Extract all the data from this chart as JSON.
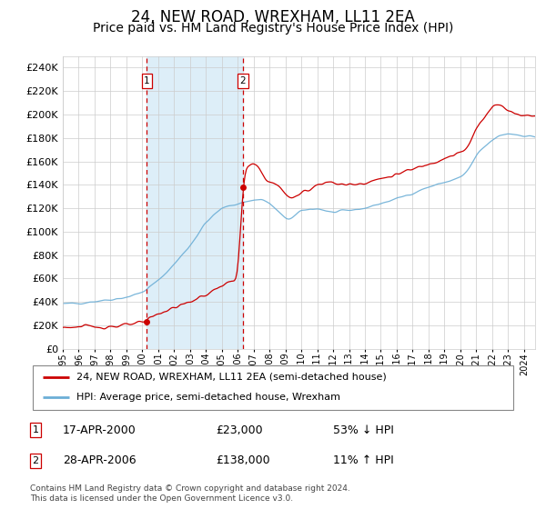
{
  "title": "24, NEW ROAD, WREXHAM, LL11 2EA",
  "subtitle": "Price paid vs. HM Land Registry's House Price Index (HPI)",
  "title_fontsize": 12,
  "subtitle_fontsize": 10,
  "legend_line1": "24, NEW ROAD, WREXHAM, LL11 2EA (semi-detached house)",
  "legend_line2": "HPI: Average price, semi-detached house, Wrexham",
  "purchase1_date": 2000.29,
  "purchase1_price": 23000,
  "purchase2_date": 2006.32,
  "purchase2_price": 138000,
  "footnote": "Contains HM Land Registry data © Crown copyright and database right 2024.\nThis data is licensed under the Open Government Licence v3.0.",
  "hpi_color": "#6baed6",
  "price_color": "#cc0000",
  "highlight_color": "#ddeef8",
  "dashed_line_color": "#cc0000",
  "marker_color": "#cc0000",
  "grid_color": "#cccccc",
  "background_color": "#ffffff",
  "ylim_min": 0,
  "ylim_max": 250000,
  "ytick_step": 20000,
  "xstart": 1995.0,
  "xend": 2024.7
}
